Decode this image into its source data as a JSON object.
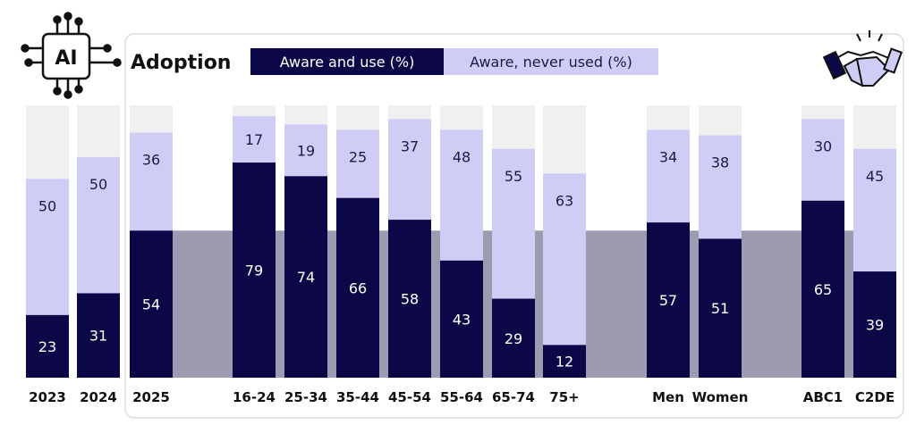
{
  "chart_data": {
    "type": "bar",
    "stacked": true,
    "title": "Adoption",
    "legend": [
      "Aware and use (%)",
      "Aware, never used (%)"
    ],
    "legend_placement": "top",
    "ylim": [
      0,
      100
    ],
    "reference_value": 54,
    "categories": [
      "2023",
      "2024",
      "2025",
      "16-24",
      "25-34",
      "35-44",
      "45-54",
      "55-64",
      "65-74",
      "75+",
      "Men",
      "Women",
      "ABC1",
      "C2DE"
    ],
    "groups": [
      {
        "name": "",
        "categories": [
          "2023",
          "2024"
        ]
      },
      {
        "name": "",
        "categories": [
          "2025",
          "16-24",
          "25-34",
          "35-44",
          "45-54",
          "55-64",
          "65-74",
          "75+",
          "Men",
          "Women",
          "ABC1",
          "C2DE"
        ]
      }
    ],
    "series": [
      {
        "name": "Aware and use (%)",
        "values": [
          23,
          31,
          54,
          79,
          74,
          66,
          58,
          43,
          29,
          12,
          57,
          51,
          65,
          39
        ]
      },
      {
        "name": "Aware, never used (%)",
        "values": [
          50,
          50,
          36,
          17,
          19,
          25,
          37,
          48,
          55,
          63,
          34,
          38,
          30,
          45
        ]
      }
    ]
  },
  "colors": {
    "use": "#0c0847",
    "never": "#cfcdf5",
    "remainder": "#f0f0f0",
    "band": "#9d9bb0",
    "frame": "#d4d4d4"
  },
  "icons": {
    "left": "ai-chip-icon",
    "right": "handshake-icon",
    "left_label": "AI"
  }
}
